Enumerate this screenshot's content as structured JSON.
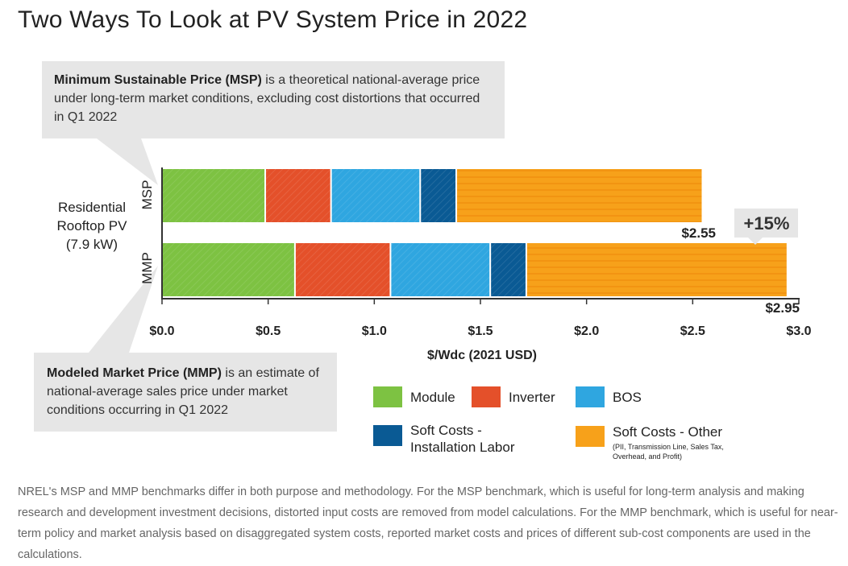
{
  "page": {
    "title": "Two Ways To Look at PV System Price in 2022",
    "footnote": "NREL's MSP and MMP benchmarks differ in both purpose and methodology. For the MSP benchmark, which is useful for long-term analysis and making research and development investment decisions, distorted input costs are removed from model calculations. For the MMP benchmark, which is useful for near-term policy and market analysis based on disaggregated system costs, reported market costs and prices of different sub-cost components are used in the calculations."
  },
  "callouts": {
    "msp": {
      "bold": "Minimum Sustainable Price (MSP)",
      "text": " is a theoretical national-average price under long-term market conditions, excluding cost distortions that occurred in Q1 2022"
    },
    "mmp": {
      "bold": "Modeled Market Price (MMP)",
      "text": " is an estimate of national-average sales price under market conditions occurring in Q1 2022"
    }
  },
  "group_label": "Residential Rooftop PV (7.9 kW)",
  "chart_data": {
    "type": "bar",
    "orientation": "horizontal",
    "stacked": true,
    "title": "",
    "xlabel": "$/Wdc (2021 USD)",
    "xlim": [
      0,
      3.0
    ],
    "xticks": [
      0,
      0.5,
      1.0,
      1.5,
      2.0,
      2.5,
      3.0
    ],
    "xtick_labels": [
      "$0.0",
      "$0.5",
      "$1.0",
      "$1.5",
      "$2.0",
      "$2.5",
      "$3.0"
    ],
    "categories": [
      "MSP",
      "MMP"
    ],
    "series": [
      {
        "name": "Module",
        "color": "#7dc242",
        "values": [
          0.49,
          0.63
        ]
      },
      {
        "name": "Inverter",
        "color": "#e4502a",
        "values": [
          0.31,
          0.45
        ]
      },
      {
        "name": "BOS",
        "color": "#2fa6e0",
        "values": [
          0.42,
          0.47
        ]
      },
      {
        "name": "Soft Costs - Installation Labor",
        "color": "#0a5a94",
        "values": [
          0.17,
          0.17
        ]
      },
      {
        "name": "Soft Costs - Other",
        "color": "#f7a11a",
        "values": [
          1.16,
          1.23
        ]
      }
    ],
    "totals": [
      "$2.55",
      "$2.95"
    ],
    "annotation": "+15%"
  },
  "legend": {
    "module": "Module",
    "inverter": "Inverter",
    "bos": "BOS",
    "labor_line1": "Soft Costs -",
    "labor_line2": "Installation Labor",
    "other": "Soft Costs - Other",
    "other_sub_line1": "(PII, Transmission Line, Sales Tax,",
    "other_sub_line2": "Overhead, and Profit)"
  }
}
